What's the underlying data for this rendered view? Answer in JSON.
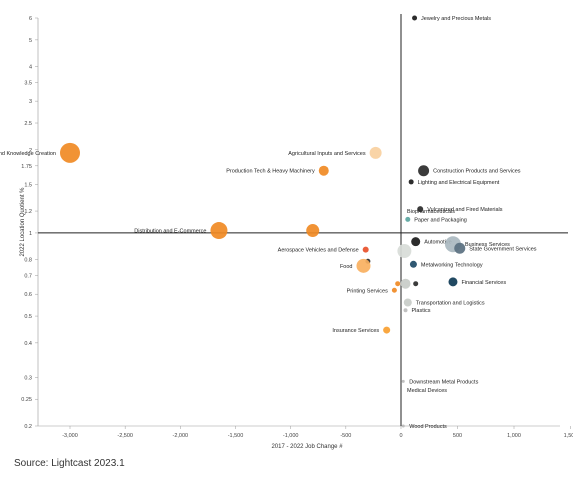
{
  "chart_data": {
    "type": "scatter",
    "title": "",
    "xlabel": "2017 - 2022 Job Change #",
    "ylabel": "2022 Location Quotient %",
    "xlim": [
      -3100,
      1500
    ],
    "ylim": [
      0.2,
      6
    ],
    "yscale": "log",
    "x_ticks": [
      "-3,000",
      "-2,500",
      "-2,000",
      "-1,500",
      "-1,000",
      "-500",
      "0",
      "500",
      "1,000",
      "1,500"
    ],
    "x_tick_values": [
      -3000,
      -2500,
      -2000,
      -1500,
      -1000,
      -500,
      0,
      500,
      1000,
      1500
    ],
    "y_ticks": [
      "6",
      "5",
      "4",
      "3.5",
      "3",
      "2.5",
      "2",
      "1.75",
      "1.5",
      "1.2",
      "1",
      "0.8",
      "0.7",
      "0.6",
      "0.5",
      "0.4",
      "0.3",
      "0.25",
      "0.2"
    ],
    "y_tick_values": [
      6,
      5,
      4,
      3.5,
      3,
      2.5,
      2,
      1.75,
      1.5,
      1.2,
      1,
      0.8,
      0.7,
      0.6,
      0.5,
      0.4,
      0.3,
      0.25,
      0.2
    ],
    "grid": false,
    "reference_lines": {
      "x": 0,
      "y": 1
    },
    "points": [
      {
        "label": "Jewelry and Precious Metals",
        "x": 120,
        "y": 6.0,
        "r": 2.5,
        "color": "#1a1a1a"
      },
      {
        "label": "Education and Knowledge Creation",
        "x": -3000,
        "y": 1.95,
        "r": 10,
        "color": "#f08a24"
      },
      {
        "label": "Agricultural Inputs and Services",
        "x": -230,
        "y": 1.95,
        "r": 6,
        "color": "#f8d0a0"
      },
      {
        "label": "Construction Products and Services",
        "x": 200,
        "y": 1.68,
        "r": 5.5,
        "color": "#2a2a2a"
      },
      {
        "label": "Production Tech & Heavy Machinery",
        "x": -700,
        "y": 1.68,
        "r": 5,
        "color": "#f08a24"
      },
      {
        "label": "Lighting and Electrical Equipment",
        "x": 90,
        "y": 1.53,
        "r": 2.5,
        "color": "#1a1a1a"
      },
      {
        "label": "Biopharmaceuticals",
        "x": 0,
        "y": 1.2,
        "r": 0,
        "color": "#999999"
      },
      {
        "label": "Vulcanized and Fired Materials",
        "x": 170,
        "y": 1.22,
        "r": 3,
        "color": "#2a2a2a"
      },
      {
        "label": "Paper and Packaging",
        "x": 60,
        "y": 1.12,
        "r": 2.5,
        "color": "#5aa5a0"
      },
      {
        "label": "Distribution and E-Commerce",
        "x": -1650,
        "y": 1.02,
        "r": 8.5,
        "color": "#f08a24"
      },
      {
        "label": "",
        "x": -800,
        "y": 1.02,
        "r": 6.5,
        "color": "#f08a24"
      },
      {
        "label": "Automotive",
        "x": 130,
        "y": 0.93,
        "r": 4.5,
        "color": "#1a1a1a"
      },
      {
        "label": "Business Services",
        "x": 460,
        "y": 0.91,
        "r": 8,
        "color": "#aab8c0"
      },
      {
        "label": "State Government Services",
        "x": 520,
        "y": 0.88,
        "r": 5.5,
        "color": "#5a7080"
      },
      {
        "label": "Aerospace Vehicles and Defense",
        "x": -320,
        "y": 0.87,
        "r": 3,
        "color": "#e8502a"
      },
      {
        "label": "",
        "x": 30,
        "y": 0.86,
        "r": 7,
        "color": "#d8dcd8"
      },
      {
        "label": "",
        "x": -300,
        "y": 0.79,
        "r": 2.5,
        "color": "#2a2a2a"
      },
      {
        "label": "Food",
        "x": -340,
        "y": 0.76,
        "r": 7,
        "color": "#f8b060"
      },
      {
        "label": "Metalworking Technology",
        "x": 110,
        "y": 0.77,
        "r": 3.5,
        "color": "#1e4a66"
      },
      {
        "label": "Financial Services",
        "x": 460,
        "y": 0.665,
        "r": 4.5,
        "color": "#0e3a55"
      },
      {
        "label": "",
        "x": 40,
        "y": 0.655,
        "r": 5,
        "color": "#c8ccc8"
      },
      {
        "label": "",
        "x": 130,
        "y": 0.655,
        "r": 2.5,
        "color": "#2a2a2a"
      },
      {
        "label": "Printing Services",
        "x": -60,
        "y": 0.62,
        "r": 2.5,
        "color": "#f08a24"
      },
      {
        "label": "",
        "x": -30,
        "y": 0.655,
        "r": 2.5,
        "color": "#f08a24"
      },
      {
        "label": "Transportation and Logistics",
        "x": 60,
        "y": 0.56,
        "r": 4,
        "color": "#c8ccc8"
      },
      {
        "label": "Plastics",
        "x": 40,
        "y": 0.525,
        "r": 2,
        "color": "#bbbbbb"
      },
      {
        "label": "Insurance Services",
        "x": -130,
        "y": 0.445,
        "r": 3.5,
        "color": "#f8a030"
      },
      {
        "label": "Downstream Metal Products",
        "x": 20,
        "y": 0.29,
        "r": 1.5,
        "color": "#bbbbbb"
      },
      {
        "label": "Medical Devices",
        "x": 0,
        "y": 0.27,
        "r": 0,
        "color": "#bbbbbb"
      },
      {
        "label": "Wood Products",
        "x": 20,
        "y": 0.2,
        "r": 1.5,
        "color": "#bbbbbb"
      }
    ]
  },
  "source": "Source: Lightcast 2023.1"
}
